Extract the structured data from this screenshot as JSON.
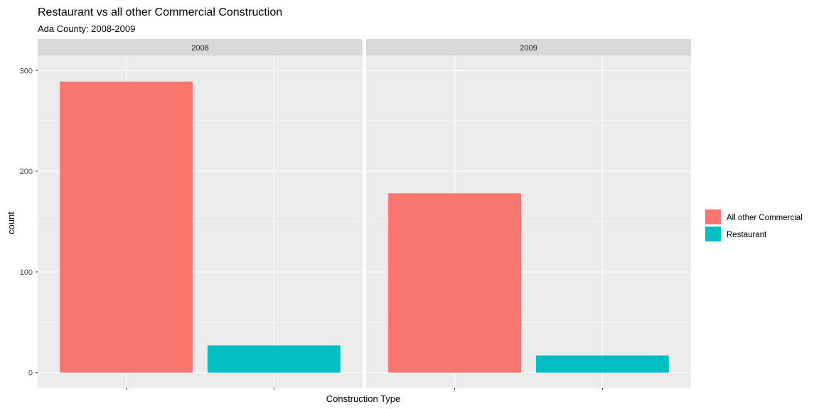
{
  "chart_data": {
    "type": "bar",
    "title": "Restaurant vs all other Commercial Construction",
    "subtitle": "Ada County: 2008-2009",
    "xlabel": "Construction Type",
    "ylabel": "count",
    "ylim": [
      0,
      300
    ],
    "yticks": [
      0,
      100,
      200,
      300
    ],
    "grid": true,
    "legend_position": "right",
    "categories": [
      "All other Commercial",
      "Restaurant"
    ],
    "colors": [
      "#F8766D",
      "#00BFC4"
    ],
    "facets": [
      {
        "label": "2008",
        "values": [
          289,
          27
        ]
      },
      {
        "label": "2009",
        "values": [
          178,
          17
        ]
      }
    ]
  }
}
